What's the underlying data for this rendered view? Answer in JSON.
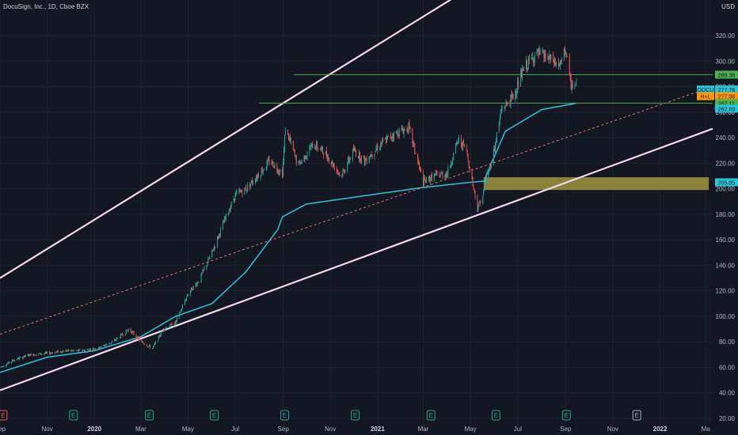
{
  "header": {
    "title": "DocuSign, Inc., 1D, Cboe BZX",
    "currency": "USD"
  },
  "colors": {
    "background": "#131722",
    "up": "#26a69a",
    "down": "#ef5350",
    "channel": "#f6d9ee",
    "level": "#4caf50",
    "avwap": "#26c6da",
    "mid": "#e57373",
    "zone": "#b5a642",
    "last_price": "#26c6da"
  },
  "chart_data": {
    "type": "line",
    "title": "DocuSign, Inc., 1D, Cboe BZX",
    "ylim": [
      20,
      330
    ],
    "y_ticks": [
      20,
      40,
      60,
      80,
      100,
      120,
      140,
      160,
      180,
      200,
      220,
      240,
      260,
      280,
      300,
      320
    ],
    "y_tick_labels": [
      "20.00",
      "40.00",
      "60.00",
      "80.00",
      "100.00",
      "120.00",
      "140.00",
      "160.00",
      "180.00",
      "200.00",
      "220.00",
      "240.00",
      "260.00",
      "280.00",
      "300.00",
      "320.00"
    ],
    "x_range": [
      "2019-09-01",
      "2022-03-10"
    ],
    "x_ticks": [
      {
        "date": "2019-09-01",
        "label": "Sep"
      },
      {
        "date": "2019-11-01",
        "label": "Nov"
      },
      {
        "date": "2020-01-01",
        "label": "2020",
        "bold": true
      },
      {
        "date": "2020-03-01",
        "label": "Mar"
      },
      {
        "date": "2020-05-01",
        "label": "May"
      },
      {
        "date": "2020-07-01",
        "label": "Jul"
      },
      {
        "date": "2020-09-01",
        "label": "Sep"
      },
      {
        "date": "2020-11-01",
        "label": "Nov"
      },
      {
        "date": "2021-01-01",
        "label": "2021",
        "bold": true
      },
      {
        "date": "2021-03-01",
        "label": "Mar"
      },
      {
        "date": "2021-05-01",
        "label": "May"
      },
      {
        "date": "2021-07-01",
        "label": "Jul"
      },
      {
        "date": "2021-09-01",
        "label": "Sep"
      },
      {
        "date": "2021-11-01",
        "label": "Nov"
      },
      {
        "date": "2022-01-01",
        "label": "2022",
        "bold": true
      },
      {
        "date": "2022-03-01",
        "label": "Ma"
      }
    ],
    "series": [
      {
        "type": "candlestick",
        "x": [
          "2019-09-01",
          "2019-09-20",
          "2019-10-10",
          "2019-11-01",
          "2019-11-25",
          "2019-12-15",
          "2020-01-05",
          "2020-01-25",
          "2020-02-15",
          "2020-03-01",
          "2020-03-16",
          "2020-03-30",
          "2020-04-15",
          "2020-05-01",
          "2020-05-15",
          "2020-06-01",
          "2020-06-15",
          "2020-07-01",
          "2020-07-15",
          "2020-08-01",
          "2020-08-15",
          "2020-08-31",
          "2020-09-04",
          "2020-09-20",
          "2020-10-10",
          "2020-10-25",
          "2020-11-15",
          "2020-12-01",
          "2020-12-15",
          "2021-01-05",
          "2021-01-20",
          "2021-02-10",
          "2021-03-01",
          "2021-03-15",
          "2021-04-01",
          "2021-04-15",
          "2021-04-25",
          "2021-05-10",
          "2021-05-17",
          "2021-06-01",
          "2021-06-10",
          "2021-06-25",
          "2021-07-10",
          "2021-07-25",
          "2021-08-10",
          "2021-08-25",
          "2021-09-01",
          "2021-09-07",
          "2021-09-15"
        ],
        "close": [
          60,
          66,
          70,
          71,
          73,
          73,
          75,
          80,
          90,
          80,
          75,
          90,
          95,
          118,
          128,
          150,
          172,
          195,
          200,
          212,
          222,
          212,
          248,
          218,
          235,
          228,
          210,
          230,
          222,
          235,
          242,
          248,
          205,
          210,
          212,
          238,
          232,
          185,
          195,
          232,
          262,
          272,
          295,
          306,
          302,
          296,
          310,
          282,
          280
        ]
      },
      {
        "name": "",
        "type": "line",
        "style": "anchored-vwap",
        "x": [
          "2019-09-01",
          "2019-11-01",
          "2020-01-01",
          "2020-03-01",
          "2020-04-15",
          "2020-06-01",
          "2020-07-15",
          "2020-08-25",
          "2020-08-31",
          "2020-10-01",
          "2021-01-01",
          "2021-03-01",
          "2021-05-01",
          "2021-05-20",
          "2021-05-21",
          "2021-06-15",
          "2021-08-01",
          "2021-09-15"
        ],
        "y": [
          56,
          68,
          73,
          84,
          100,
          110,
          135,
          168,
          178,
          188,
          196,
          201,
          205,
          206,
          210,
          245,
          262,
          267
        ]
      },
      {
        "name": "",
        "type": "line",
        "style": "channel-upper",
        "x": [
          "2019-09-01",
          "2022-03-10"
        ],
        "y": [
          130,
          475
        ]
      },
      {
        "name": "",
        "type": "line",
        "style": "channel-lower",
        "x": [
          "2019-09-01",
          "2022-03-10"
        ],
        "y": [
          42,
          247
        ]
      },
      {
        "name": "",
        "type": "line",
        "style": "channel-mid-dashed",
        "x": [
          "2019-09-01",
          "2022-03-10"
        ],
        "y": [
          86,
          280
        ]
      },
      {
        "name": "",
        "type": "hline",
        "y": 289.38,
        "x": [
          "2020-09-15",
          "2022-03-10"
        ]
      },
      {
        "name": "",
        "type": "hline",
        "y": 267.11,
        "x": [
          "2020-08-01",
          "2022-03-10"
        ]
      }
    ],
    "zone": {
      "y": [
        199,
        209
      ],
      "x": [
        "2021-05-18",
        "2022-03-05"
      ]
    },
    "price_labels": [
      {
        "text": "DOCU",
        "value": "277.76",
        "y": 277.76,
        "color": "#26c6da"
      },
      {
        "text": "H+L",
        "value": "277.08",
        "y": 272.5,
        "color": "#ff9800"
      },
      {
        "text": "",
        "value": "289.38",
        "y": 289.38,
        "color": "#4caf50"
      },
      {
        "text": "",
        "value": "267.11",
        "y": 267.11,
        "color": "#4caf50"
      },
      {
        "text": "",
        "value": "262.69",
        "y": 262.69,
        "color": "#26c6da"
      },
      {
        "text": "",
        "value": "205.05",
        "y": 205.05,
        "color": "#26c6da"
      }
    ],
    "events": [
      {
        "date": "2019-09-05",
        "letter": "E",
        "color": "#ef5350"
      },
      {
        "date": "2019-12-05",
        "letter": "E",
        "color": "#26a69a"
      },
      {
        "date": "2020-03-12",
        "letter": "E",
        "color": "#26a69a"
      },
      {
        "date": "2020-06-04",
        "letter": "E",
        "color": "#26a69a"
      },
      {
        "date": "2020-09-03",
        "letter": "E",
        "color": "#26a69a"
      },
      {
        "date": "2020-12-03",
        "letter": "E",
        "color": "#26a69a"
      },
      {
        "date": "2021-03-11",
        "letter": "E",
        "color": "#26a69a"
      },
      {
        "date": "2021-06-03",
        "letter": "E",
        "color": "#26a69a"
      },
      {
        "date": "2021-09-02",
        "letter": "E",
        "color": "#26a69a"
      },
      {
        "date": "2021-12-02",
        "letter": "E",
        "color": "#b2b5be"
      }
    ]
  }
}
